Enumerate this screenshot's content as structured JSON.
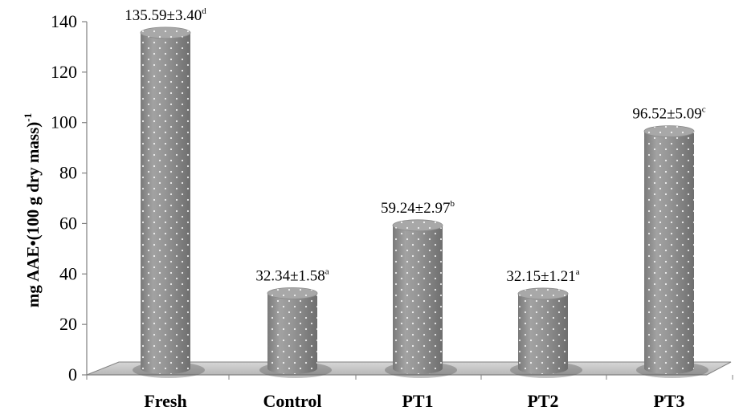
{
  "chart_data": {
    "type": "bar",
    "title": "",
    "xlabel": "",
    "ylabel": "mg AAE•(100 g dry mass)",
    "ylabel_superscript": "-1",
    "ylim": [
      0,
      140
    ],
    "yticks": [
      "0",
      "20",
      "40",
      "60",
      "80",
      "100",
      "120",
      "140"
    ],
    "categories": [
      "Fresh",
      "Control",
      "PT1",
      "PT2",
      "PT3"
    ],
    "values": [
      135.59,
      32.34,
      59.24,
      32.15,
      96.52
    ],
    "errors": [
      3.4,
      1.58,
      2.97,
      1.21,
      5.09
    ],
    "data_labels": [
      "135.59±3.40",
      "32.34±1.58",
      "59.24±2.97",
      "32.15±1.21",
      "96.52±5.09"
    ],
    "significance_letters": [
      "d",
      "a",
      "b",
      "a",
      "c"
    ],
    "grid": false,
    "legend": "none",
    "style": "3d-cylinder",
    "bar_color": "#8c8c8c"
  }
}
